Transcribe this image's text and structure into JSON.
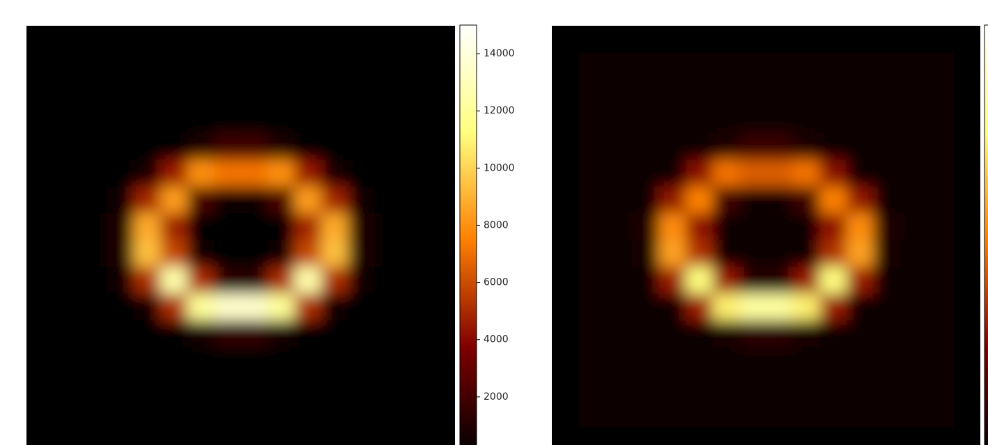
{
  "chart_data": [
    {
      "type": "heatmap",
      "colormap": "afmhot",
      "clim": [
        0,
        15000
      ],
      "cticks": [
        2000,
        4000,
        6000,
        8000,
        10000,
        12000,
        14000
      ],
      "values": [
        [
          0,
          0,
          0,
          0,
          0,
          0,
          0,
          0,
          0,
          0,
          0,
          0,
          0,
          0,
          0,
          0
        ],
        [
          0,
          0,
          0,
          0,
          0,
          0,
          0,
          0,
          0,
          0,
          0,
          0,
          0,
          0,
          0,
          0
        ],
        [
          0,
          0,
          0,
          0,
          0,
          0,
          0,
          0,
          0,
          0,
          0,
          0,
          0,
          0,
          0,
          0
        ],
        [
          0,
          0,
          0,
          0,
          0,
          0,
          0,
          0,
          0,
          0,
          0,
          0,
          0,
          0,
          0,
          0
        ],
        [
          0,
          0,
          0,
          0,
          0,
          140,
          850,
          1800,
          1800,
          850,
          140,
          0,
          0,
          0,
          0,
          0
        ],
        [
          0,
          0,
          0,
          0,
          560,
          4500,
          8000,
          7200,
          7200,
          8000,
          4500,
          560,
          0,
          0,
          0,
          0
        ],
        [
          0,
          0,
          0,
          220,
          4800,
          8400,
          2160,
          360,
          360,
          2160,
          8400,
          4800,
          220,
          0,
          0,
          0
        ],
        [
          0,
          0,
          0,
          850,
          8800,
          4700,
          100,
          0,
          0,
          100,
          4700,
          8800,
          850,
          0,
          0,
          0
        ],
        [
          0,
          0,
          0,
          800,
          9400,
          5800,
          250,
          0,
          0,
          250,
          5800,
          9400,
          800,
          0,
          0,
          0
        ],
        [
          0,
          0,
          0,
          200,
          5100,
          12500,
          5000,
          1250,
          1250,
          5000,
          12500,
          5100,
          200,
          0,
          0,
          0
        ],
        [
          0,
          0,
          0,
          0,
          500,
          5100,
          12000,
          13500,
          13500,
          12000,
          5100,
          500,
          0,
          0,
          0,
          0
        ],
        [
          0,
          0,
          0,
          0,
          0,
          0,
          600,
          1400,
          1400,
          600,
          0,
          0,
          0,
          0,
          0,
          0
        ],
        [
          0,
          0,
          0,
          0,
          0,
          0,
          0,
          0,
          0,
          0,
          0,
          0,
          0,
          0,
          0,
          0
        ],
        [
          0,
          0,
          0,
          0,
          0,
          0,
          0,
          0,
          0,
          0,
          0,
          0,
          0,
          0,
          0,
          0
        ],
        [
          0,
          0,
          0,
          0,
          0,
          0,
          0,
          0,
          0,
          0,
          0,
          0,
          0,
          0,
          0,
          0
        ],
        [
          0,
          0,
          0,
          0,
          0,
          0,
          0,
          0,
          0,
          0,
          0,
          0,
          0,
          0,
          0,
          0
        ]
      ]
    },
    {
      "type": "heatmap",
      "colormap": "afmhot",
      "clim": [
        0,
        15000
      ],
      "values": [
        [
          0,
          0,
          0,
          0,
          0,
          0,
          0,
          0,
          0,
          0,
          0,
          0,
          0,
          0,
          0,
          0
        ],
        [
          0,
          250,
          250,
          250,
          250,
          250,
          250,
          250,
          250,
          250,
          250,
          250,
          250,
          250,
          250,
          0
        ],
        [
          0,
          250,
          250,
          250,
          250,
          250,
          250,
          250,
          250,
          250,
          250,
          250,
          250,
          250,
          250,
          0
        ],
        [
          0,
          250,
          250,
          250,
          250,
          250,
          250,
          250,
          250,
          250,
          250,
          250,
          250,
          250,
          250,
          0
        ],
        [
          0,
          250,
          250,
          250,
          250,
          250,
          770,
          1620,
          1620,
          770,
          250,
          250,
          250,
          250,
          250,
          0
        ],
        [
          0,
          250,
          250,
          250,
          500,
          4050,
          7200,
          6500,
          6500,
          7200,
          4050,
          500,
          250,
          250,
          250,
          0
        ],
        [
          0,
          250,
          250,
          250,
          4300,
          7600,
          1900,
          320,
          320,
          1900,
          7600,
          4300,
          250,
          250,
          250,
          0
        ],
        [
          0,
          250,
          250,
          770,
          7900,
          4200,
          250,
          250,
          250,
          250,
          4200,
          7900,
          770,
          250,
          250,
          0
        ],
        [
          0,
          250,
          250,
          720,
          8500,
          5200,
          250,
          250,
          250,
          250,
          5200,
          8500,
          720,
          250,
          250,
          0
        ],
        [
          0,
          250,
          250,
          250,
          4600,
          11300,
          4500,
          1100,
          1100,
          4500,
          11300,
          4600,
          250,
          250,
          250,
          0
        ],
        [
          0,
          250,
          250,
          250,
          450,
          4600,
          10800,
          12200,
          12200,
          10800,
          4600,
          450,
          250,
          250,
          250,
          0
        ],
        [
          0,
          250,
          250,
          250,
          250,
          250,
          540,
          1300,
          1300,
          540,
          250,
          250,
          250,
          250,
          250,
          0
        ],
        [
          0,
          250,
          250,
          250,
          250,
          250,
          250,
          250,
          250,
          250,
          250,
          250,
          250,
          250,
          250,
          0
        ],
        [
          0,
          250,
          250,
          250,
          250,
          250,
          250,
          250,
          250,
          250,
          250,
          250,
          250,
          250,
          250,
          0
        ],
        [
          0,
          250,
          250,
          250,
          250,
          250,
          250,
          250,
          250,
          250,
          250,
          250,
          250,
          250,
          250,
          0
        ],
        [
          0,
          0,
          0,
          0,
          0,
          0,
          0,
          0,
          0,
          0,
          0,
          0,
          0,
          0,
          0,
          0
        ]
      ]
    }
  ]
}
